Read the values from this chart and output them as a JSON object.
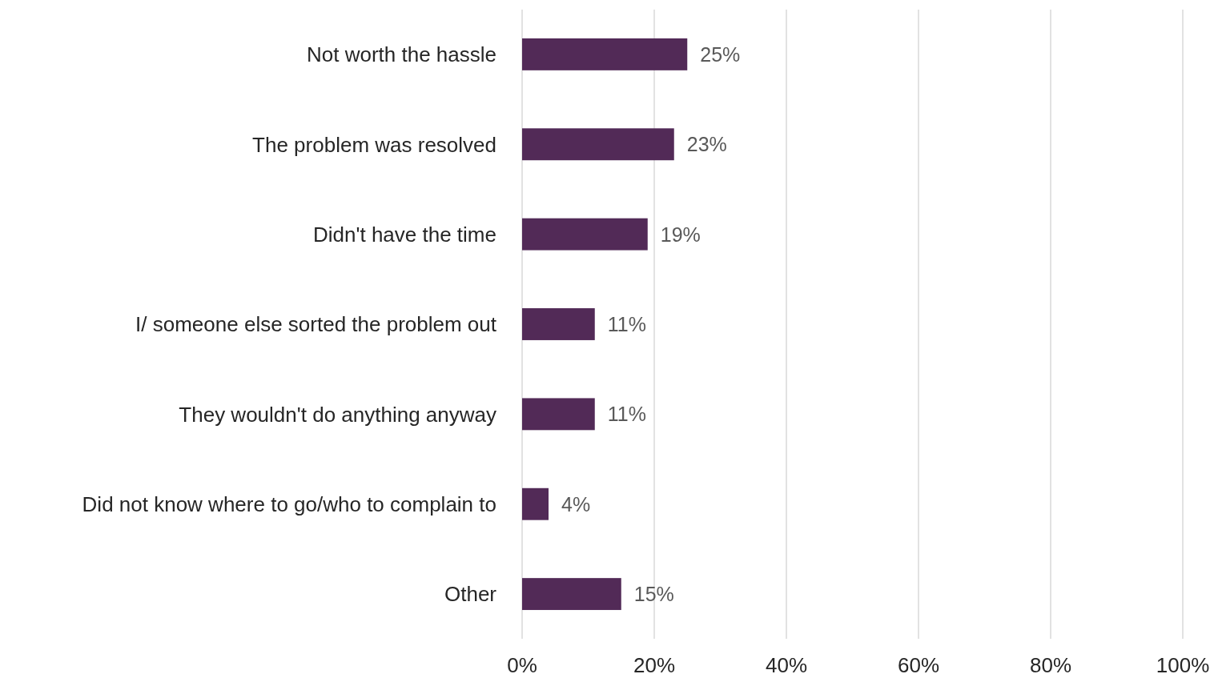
{
  "chart_data": {
    "type": "bar",
    "orientation": "horizontal",
    "categories": [
      "Not worth the hassle",
      "The problem was resolved",
      "Didn't have the time",
      "I/ someone else sorted the problem out",
      "They wouldn't do anything anyway",
      "Did not know where to go/who to complain to",
      "Other"
    ],
    "values": [
      25,
      23,
      19,
      11,
      11,
      4,
      15
    ],
    "value_labels": [
      "25%",
      "23%",
      "19%",
      "11%",
      "11%",
      "4%",
      "15%"
    ],
    "color": "#522a57",
    "xlim": [
      0,
      100
    ],
    "xticks": [
      {
        "value": 0,
        "label": "0%"
      },
      {
        "value": 20,
        "label": "20%"
      },
      {
        "value": 40,
        "label": "40%"
      },
      {
        "value": 60,
        "label": "60%"
      },
      {
        "value": 80,
        "label": "80%"
      },
      {
        "value": 100,
        "label": "100%"
      }
    ],
    "grid": "x"
  }
}
